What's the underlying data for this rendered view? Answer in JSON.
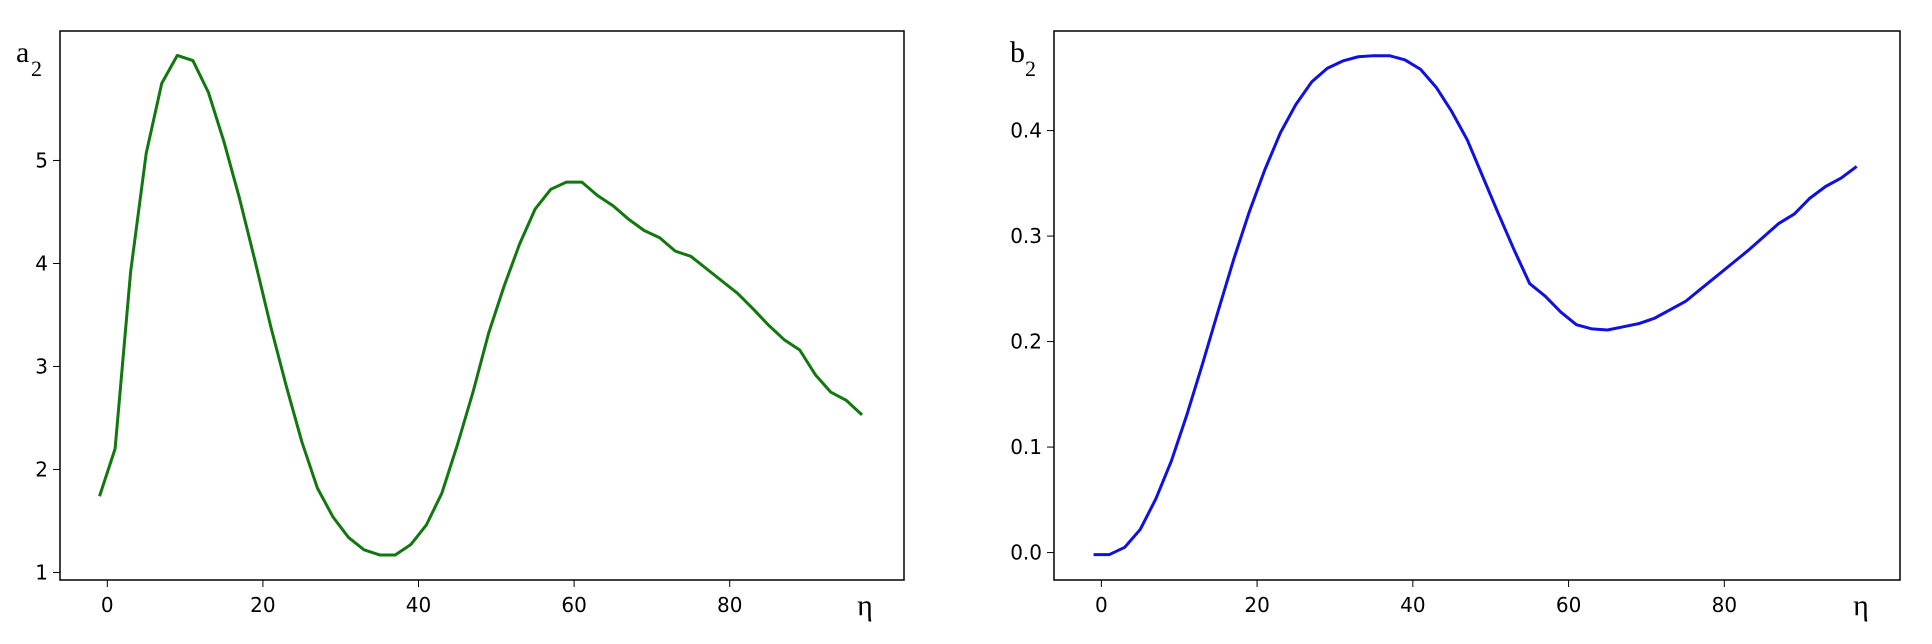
{
  "chart_data": [
    {
      "type": "line",
      "ylabel": "a",
      "ylabel_sub": "2",
      "xlabel": "η",
      "color": "#11780f",
      "x": [
        -1,
        1,
        3,
        5,
        7,
        9,
        11,
        13,
        15,
        17,
        19,
        21,
        23,
        25,
        27,
        29,
        31,
        33,
        35,
        37,
        39,
        41,
        43,
        45,
        47,
        49,
        51,
        53,
        55,
        57,
        59,
        61,
        63,
        65,
        67,
        69,
        71,
        73,
        75,
        77,
        79,
        81,
        83,
        85,
        87,
        89,
        91,
        93,
        95,
        97
      ],
      "values": [
        1.74,
        2.2,
        3.92,
        5.07,
        5.75,
        6.02,
        5.97,
        5.66,
        5.18,
        4.63,
        4.02,
        3.39,
        2.81,
        2.27,
        1.82,
        1.54,
        1.34,
        1.22,
        1.17,
        1.17,
        1.27,
        1.46,
        1.77,
        2.24,
        2.75,
        3.32,
        3.78,
        4.19,
        4.53,
        4.72,
        4.79,
        4.79,
        4.66,
        4.56,
        4.43,
        4.32,
        4.25,
        4.12,
        4.07,
        3.95,
        3.83,
        3.71,
        3.56,
        3.4,
        3.26,
        3.16,
        2.92,
        2.75,
        2.67,
        2.53
      ],
      "xlim": [
        -6.08,
        102.4
      ],
      "ylim": [
        0.927,
        6.257
      ],
      "xticks": [
        0,
        20,
        40,
        60,
        80
      ],
      "yticks": [
        1,
        2,
        3,
        4,
        5
      ]
    },
    {
      "type": "line",
      "ylabel": "b",
      "ylabel_sub": "2",
      "xlabel": "η",
      "color": "#1010e0",
      "x": [
        -1,
        1,
        3,
        5,
        7,
        9,
        11,
        13,
        15,
        17,
        19,
        21,
        23,
        25,
        27,
        29,
        31,
        33,
        35,
        37,
        39,
        41,
        43,
        45,
        47,
        49,
        51,
        53,
        55,
        57,
        59,
        61,
        63,
        65,
        67,
        69,
        71,
        73,
        75,
        77,
        79,
        81,
        83,
        85,
        87,
        89,
        91,
        93,
        95,
        97
      ],
      "values": [
        -0.002,
        -0.002,
        0.005,
        0.022,
        0.051,
        0.087,
        0.131,
        0.179,
        0.229,
        0.278,
        0.323,
        0.363,
        0.398,
        0.425,
        0.446,
        0.459,
        0.466,
        0.47,
        0.471,
        0.471,
        0.467,
        0.458,
        0.441,
        0.418,
        0.391,
        0.356,
        0.321,
        0.287,
        0.255,
        0.243,
        0.228,
        0.216,
        0.212,
        0.211,
        0.214,
        0.217,
        0.222,
        0.23,
        0.238,
        0.25,
        0.262,
        0.274,
        0.286,
        0.299,
        0.312,
        0.321,
        0.336,
        0.347,
        0.355,
        0.366
      ],
      "xlim": [
        -6.08,
        102.56
      ],
      "ylim": [
        -0.026,
        0.4944
      ],
      "xticks": [
        0,
        20,
        40,
        60,
        80
      ],
      "yticks": [
        {
          "value": 0,
          "label": "0.0"
        },
        0.1,
        0.2,
        0.3,
        0.4
      ]
    }
  ]
}
